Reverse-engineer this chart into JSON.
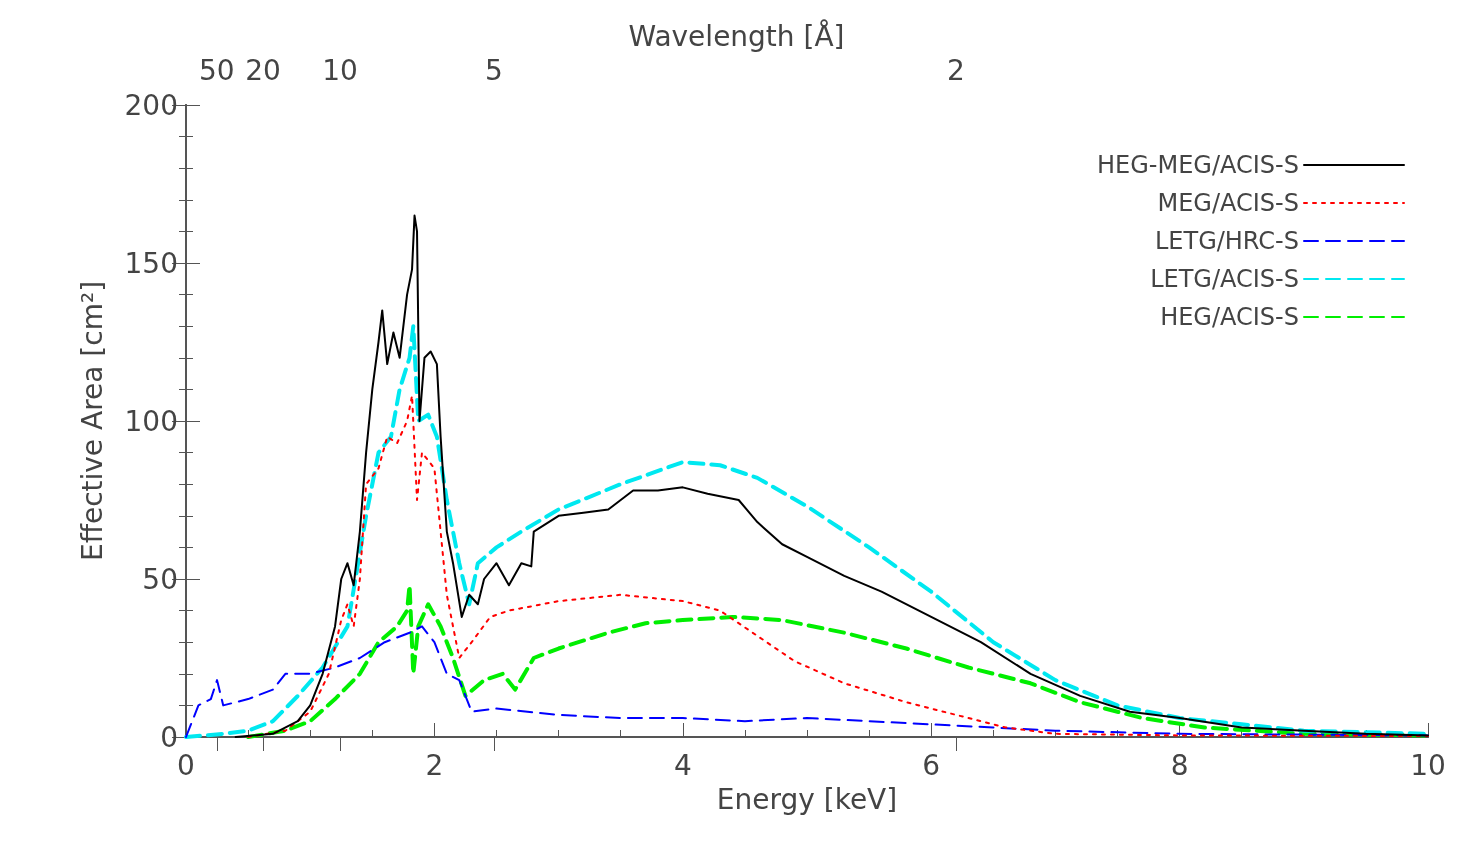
{
  "chart_data": {
    "type": "line",
    "xlabel": "Energy [keV]",
    "ylabel": "Effective Area [cm²]",
    "annotations": [
      "Wavelength [Å]",
      "50",
      "20",
      "10",
      "5",
      "2"
    ],
    "xlim": [
      0,
      10
    ],
    "xticks": [
      0,
      2,
      4,
      6,
      8,
      10
    ],
    "ylim": [
      0,
      200
    ],
    "yticks": [
      0,
      50,
      100,
      150,
      200
    ],
    "legend": "top right",
    "grid": false,
    "marker": "none",
    "series": [
      {
        "name": "HEG-MEG/ACIS-S",
        "color": "#000000",
        "line_style": "solid",
        "x": [
          0.4,
          0.7,
          0.9,
          1.0,
          1.1,
          1.2,
          1.25,
          1.3,
          1.35,
          1.4,
          1.45,
          1.5,
          1.55,
          1.58,
          1.62,
          1.67,
          1.72,
          1.78,
          1.82,
          1.84,
          1.86,
          1.88,
          1.92,
          1.97,
          2.02,
          2.05,
          2.1,
          2.15,
          2.22,
          2.28,
          2.35,
          2.4,
          2.5,
          2.6,
          2.7,
          2.78,
          2.8,
          3.0,
          3.2,
          3.4,
          3.6,
          3.8,
          4.0,
          4.2,
          4.45,
          4.6,
          4.8,
          5.0,
          5.3,
          5.6,
          6.0,
          6.4,
          6.8,
          7.2,
          7.6,
          8.0,
          8.5,
          9.0,
          9.5,
          10
        ],
        "values": [
          0,
          1,
          5,
          10,
          20,
          35,
          50,
          55,
          48,
          65,
          90,
          110,
          125,
          135,
          118,
          128,
          120,
          140,
          148,
          165,
          160,
          100,
          120,
          122,
          118,
          95,
          65,
          55,
          38,
          45,
          42,
          50,
          55,
          48,
          55,
          54,
          65,
          70,
          71,
          72,
          78,
          78,
          79,
          77,
          75,
          68,
          61,
          57,
          51,
          46,
          38,
          30,
          20,
          13,
          8,
          6,
          3,
          2,
          1,
          0.5
        ]
      },
      {
        "name": "MEG/ACIS-S",
        "color": "#ff0000",
        "line_style": "dotted",
        "x": [
          0.5,
          0.8,
          1.0,
          1.15,
          1.25,
          1.3,
          1.35,
          1.4,
          1.45,
          1.55,
          1.62,
          1.7,
          1.78,
          1.82,
          1.86,
          1.9,
          2.0,
          2.05,
          2.1,
          2.2,
          2.3,
          2.45,
          2.6,
          3.0,
          3.5,
          4.0,
          4.3,
          4.6,
          4.9,
          5.3,
          5.8,
          6.2,
          6.6,
          7.0,
          8.0,
          10
        ],
        "values": [
          0,
          2,
          8,
          20,
          37,
          42,
          35,
          50,
          80,
          85,
          95,
          93,
          100,
          108,
          75,
          90,
          85,
          65,
          45,
          25,
          30,
          38,
          40,
          43,
          45,
          43,
          40,
          32,
          24,
          17,
          11,
          7,
          3,
          1,
          0.5,
          0.3
        ]
      },
      {
        "name": "LETG/HRC-S",
        "color": "#0000ff",
        "line_style": "dashed",
        "x": [
          0,
          0.1,
          0.2,
          0.25,
          0.3,
          0.5,
          0.7,
          0.8,
          1.0,
          1.2,
          1.4,
          1.6,
          1.8,
          1.9,
          2.0,
          2.1,
          2.2,
          2.3,
          2.5,
          3,
          3.5,
          4,
          4.5,
          5,
          5.5,
          6,
          6.5,
          7,
          8,
          10
        ],
        "values": [
          0,
          10,
          12,
          18,
          10,
          12,
          15,
          20,
          20,
          22,
          25,
          30,
          33,
          35,
          30,
          20,
          18,
          8,
          9,
          7,
          6,
          6,
          5,
          6,
          5,
          4,
          3,
          2,
          1,
          0.5
        ]
      },
      {
        "name": "LETG/ACIS-S",
        "color": "#00e8f0",
        "line_style": "dashed",
        "x": [
          0,
          0.3,
          0.5,
          0.7,
          0.9,
          1.1,
          1.3,
          1.45,
          1.55,
          1.65,
          1.72,
          1.8,
          1.83,
          1.87,
          1.95,
          2.02,
          2.1,
          2.2,
          2.28,
          2.35,
          2.5,
          2.7,
          3.0,
          3.5,
          4.0,
          4.3,
          4.6,
          5.0,
          5.5,
          6.0,
          6.5,
          7.0,
          7.5,
          8.0,
          8.5,
          9,
          10
        ],
        "values": [
          0,
          1,
          2,
          5,
          13,
          22,
          35,
          70,
          90,
          95,
          110,
          120,
          130,
          100,
          102,
          95,
          75,
          55,
          42,
          55,
          60,
          65,
          72,
          80,
          87,
          86,
          82,
          73,
          60,
          46,
          30,
          18,
          10,
          6,
          4,
          2,
          1
        ]
      },
      {
        "name": "HEG/ACIS-S",
        "color": "#00ee00",
        "line_style": "dashed",
        "x": [
          0.5,
          0.8,
          1.0,
          1.2,
          1.4,
          1.55,
          1.7,
          1.78,
          1.8,
          1.83,
          1.87,
          1.95,
          2.05,
          2.15,
          2.25,
          2.4,
          2.55,
          2.65,
          2.8,
          3.0,
          3.4,
          3.7,
          4.0,
          4.4,
          4.8,
          5.3,
          5.8,
          6.3,
          6.8,
          7.2,
          7.7,
          8.2,
          9,
          10
        ],
        "values": [
          0,
          2,
          5,
          12,
          20,
          30,
          35,
          40,
          48,
          20,
          35,
          42,
          35,
          25,
          13,
          18,
          20,
          15,
          25,
          28,
          33,
          36,
          37,
          38,
          37,
          33,
          28,
          22,
          17,
          11,
          6,
          3,
          1,
          0.5
        ]
      }
    ]
  }
}
